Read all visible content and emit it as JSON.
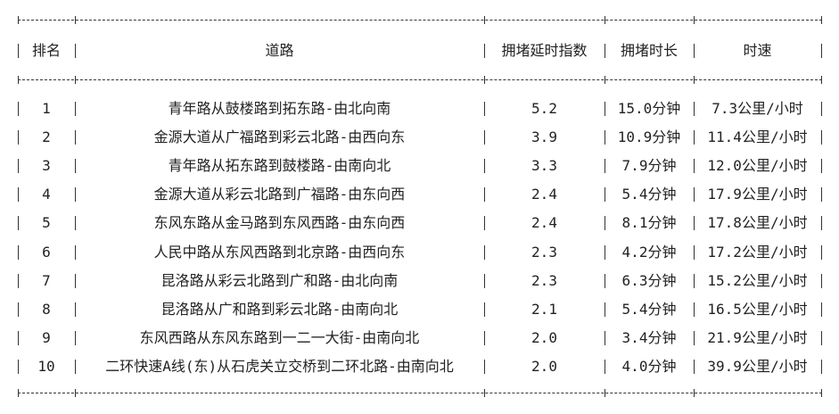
{
  "table": {
    "headers": [
      "排名",
      "道路",
      "拥堵延时指数",
      "拥堵时长",
      "时速"
    ],
    "rows": [
      [
        "1",
        "青年路从鼓楼路到拓东路-由北向南",
        "5.2",
        "15.0分钟",
        "7.3公里/小时"
      ],
      [
        "2",
        "金源大道从广福路到彩云北路-由西向东",
        "3.9",
        "10.9分钟",
        "11.4公里/小时"
      ],
      [
        "3",
        "青年路从拓东路到鼓楼路-由南向北",
        "3.3",
        "7.9分钟",
        "12.0公里/小时"
      ],
      [
        "4",
        "金源大道从彩云北路到广福路-由东向西",
        "2.4",
        "5.4分钟",
        "17.9公里/小时"
      ],
      [
        "5",
        "东风东路从金马路到东风西路-由东向西",
        "2.4",
        "8.1分钟",
        "17.8公里/小时"
      ],
      [
        "6",
        "人民中路从东风西路到北京路-由西向东",
        "2.3",
        "4.2分钟",
        "17.2公里/小时"
      ],
      [
        "7",
        "昆洛路从彩云北路到广和路-由北向南",
        "2.3",
        "6.3分钟",
        "15.2公里/小时"
      ],
      [
        "8",
        "昆洛路从广和路到彩云北路-由南向北",
        "2.1",
        "5.4分钟",
        "16.5公里/小时"
      ],
      [
        "9",
        "东风西路从东风东路到一二一大街-由南向北",
        "2.0",
        "3.4分钟",
        "21.9公里/小时"
      ],
      [
        "10",
        "二环快速A线(东)从石虎关立交桥到二环北路-由南向北",
        "2.0",
        "4.0分钟",
        "39.9公里/小时"
      ]
    ]
  }
}
